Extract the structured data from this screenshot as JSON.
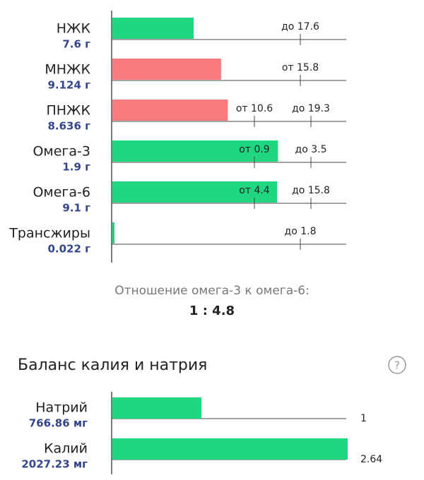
{
  "fats": {
    "rows": [
      {
        "name": "НЖК",
        "amount": "7.6 г",
        "value": 7.6,
        "xlim": [
          0,
          22
        ],
        "color": "#20d680",
        "markers": [
          "до 17.6"
        ]
      },
      {
        "name": "МНЖК",
        "amount": "9.124 г",
        "value": 9.124,
        "xlim": [
          0,
          19.75
        ],
        "color": "#f87a7a",
        "markers": [
          "от 15.8"
        ]
      },
      {
        "name": "ПНЖК",
        "amount": "8.636 г",
        "value": 8.636,
        "xlim": [
          0,
          17.6
        ],
        "color": "#f87a7a",
        "markers": [
          "от 10.6",
          "до 19.3"
        ]
      },
      {
        "name": "Омега-3",
        "amount": "1.9 г",
        "value": 1.9,
        "xlim": [
          0,
          2.7
        ],
        "color": "#20d680",
        "markers": [
          "от 0.9",
          "до 3.5"
        ]
      },
      {
        "name": "Омега-6",
        "amount": "9.1 г",
        "value": 9.1,
        "xlim": [
          0,
          13
        ],
        "color": "#20d680",
        "markers": [
          "от 4.4",
          "до 15.8"
        ]
      },
      {
        "name": "Трансжиры",
        "amount": "0.022 г",
        "value": 0.022,
        "xlim": [
          0,
          2.4
        ],
        "color": "#20d680",
        "markers": [
          "до 1.8"
        ]
      }
    ],
    "ratio_caption": "Отношение омега-3 к омега-6:",
    "ratio": "1 : 4.8"
  },
  "balance": {
    "title": "Баланс калия и натрия",
    "help": "?",
    "xlim": [
      0,
      2.64
    ],
    "color": "#20d680",
    "rows": [
      {
        "name": "Натрий",
        "amount": "766.86 мг",
        "value": 1
      },
      {
        "name": "Калий",
        "amount": "2027.23 мг",
        "value": 2.64
      }
    ]
  }
}
